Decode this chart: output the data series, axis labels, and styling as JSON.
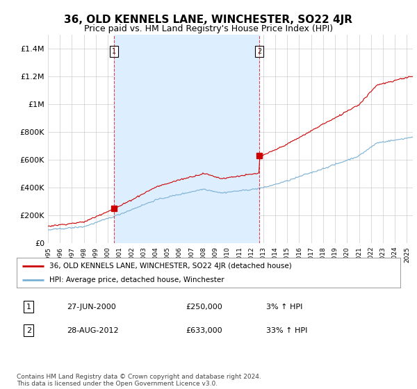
{
  "title": "36, OLD KENNELS LANE, WINCHESTER, SO22 4JR",
  "subtitle": "Price paid vs. HM Land Registry's House Price Index (HPI)",
  "ylim": [
    0,
    1500000
  ],
  "yticks": [
    0,
    200000,
    400000,
    600000,
    800000,
    1000000,
    1200000,
    1400000
  ],
  "ytick_labels": [
    "£0",
    "£200K",
    "£400K",
    "£600K",
    "£800K",
    "£1M",
    "£1.2M",
    "£1.4M"
  ],
  "legend_red_label": "36, OLD KENNELS LANE, WINCHESTER, SO22 4JR (detached house)",
  "legend_blue_label": "HPI: Average price, detached house, Winchester",
  "annotation1_label": "1",
  "annotation1_date": "27-JUN-2000",
  "annotation1_price": "£250,000",
  "annotation1_hpi": "3% ↑ HPI",
  "annotation2_label": "2",
  "annotation2_date": "28-AUG-2012",
  "annotation2_price": "£633,000",
  "annotation2_hpi": "33% ↑ HPI",
  "footer": "Contains HM Land Registry data © Crown copyright and database right 2024.\nThis data is licensed under the Open Government Licence v3.0.",
  "red_color": "#cc0000",
  "blue_color": "#7ab0d4",
  "shade_color": "#ddeeff",
  "bg_color": "#ffffff",
  "grid_color": "#cccccc",
  "title_fontsize": 11,
  "subtitle_fontsize": 9,
  "tick_fontsize": 8,
  "sale1_x": 2000.5,
  "sale2_x": 2012.67,
  "sale1_y": 250000,
  "sale2_y": 633000,
  "xmin": 1995,
  "xmax": 2025.5
}
